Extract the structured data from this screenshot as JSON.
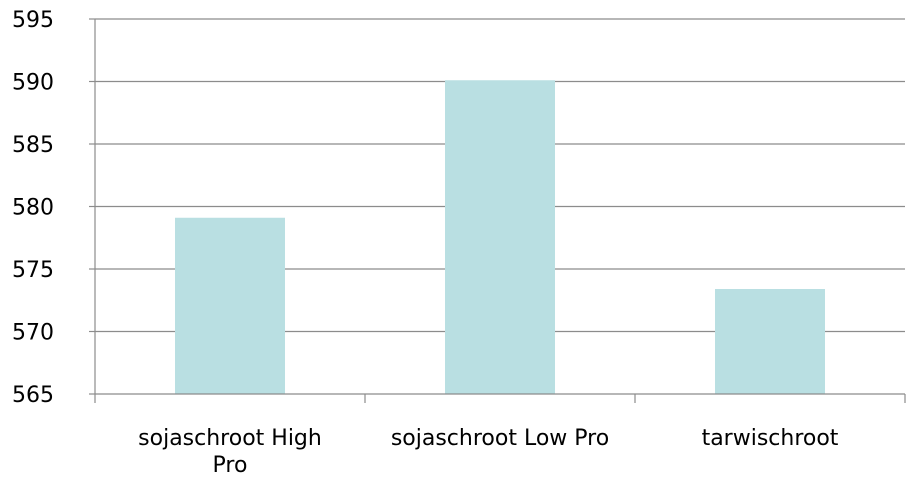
{
  "chart_data": {
    "type": "bar",
    "categories": [
      [
        "sojaschroot High",
        "Pro"
      ],
      [
        "sojaschroot Low Pro"
      ],
      [
        "tarwischroot"
      ]
    ],
    "values": [
      579.1,
      590.1,
      573.4
    ],
    "ylim": [
      565,
      595
    ],
    "yticks": [
      "565",
      "570",
      "575",
      "580",
      "585",
      "590",
      "595"
    ],
    "grid": true,
    "bar_color": "#b9dfe2",
    "grid_color": "#8c8c8c"
  }
}
